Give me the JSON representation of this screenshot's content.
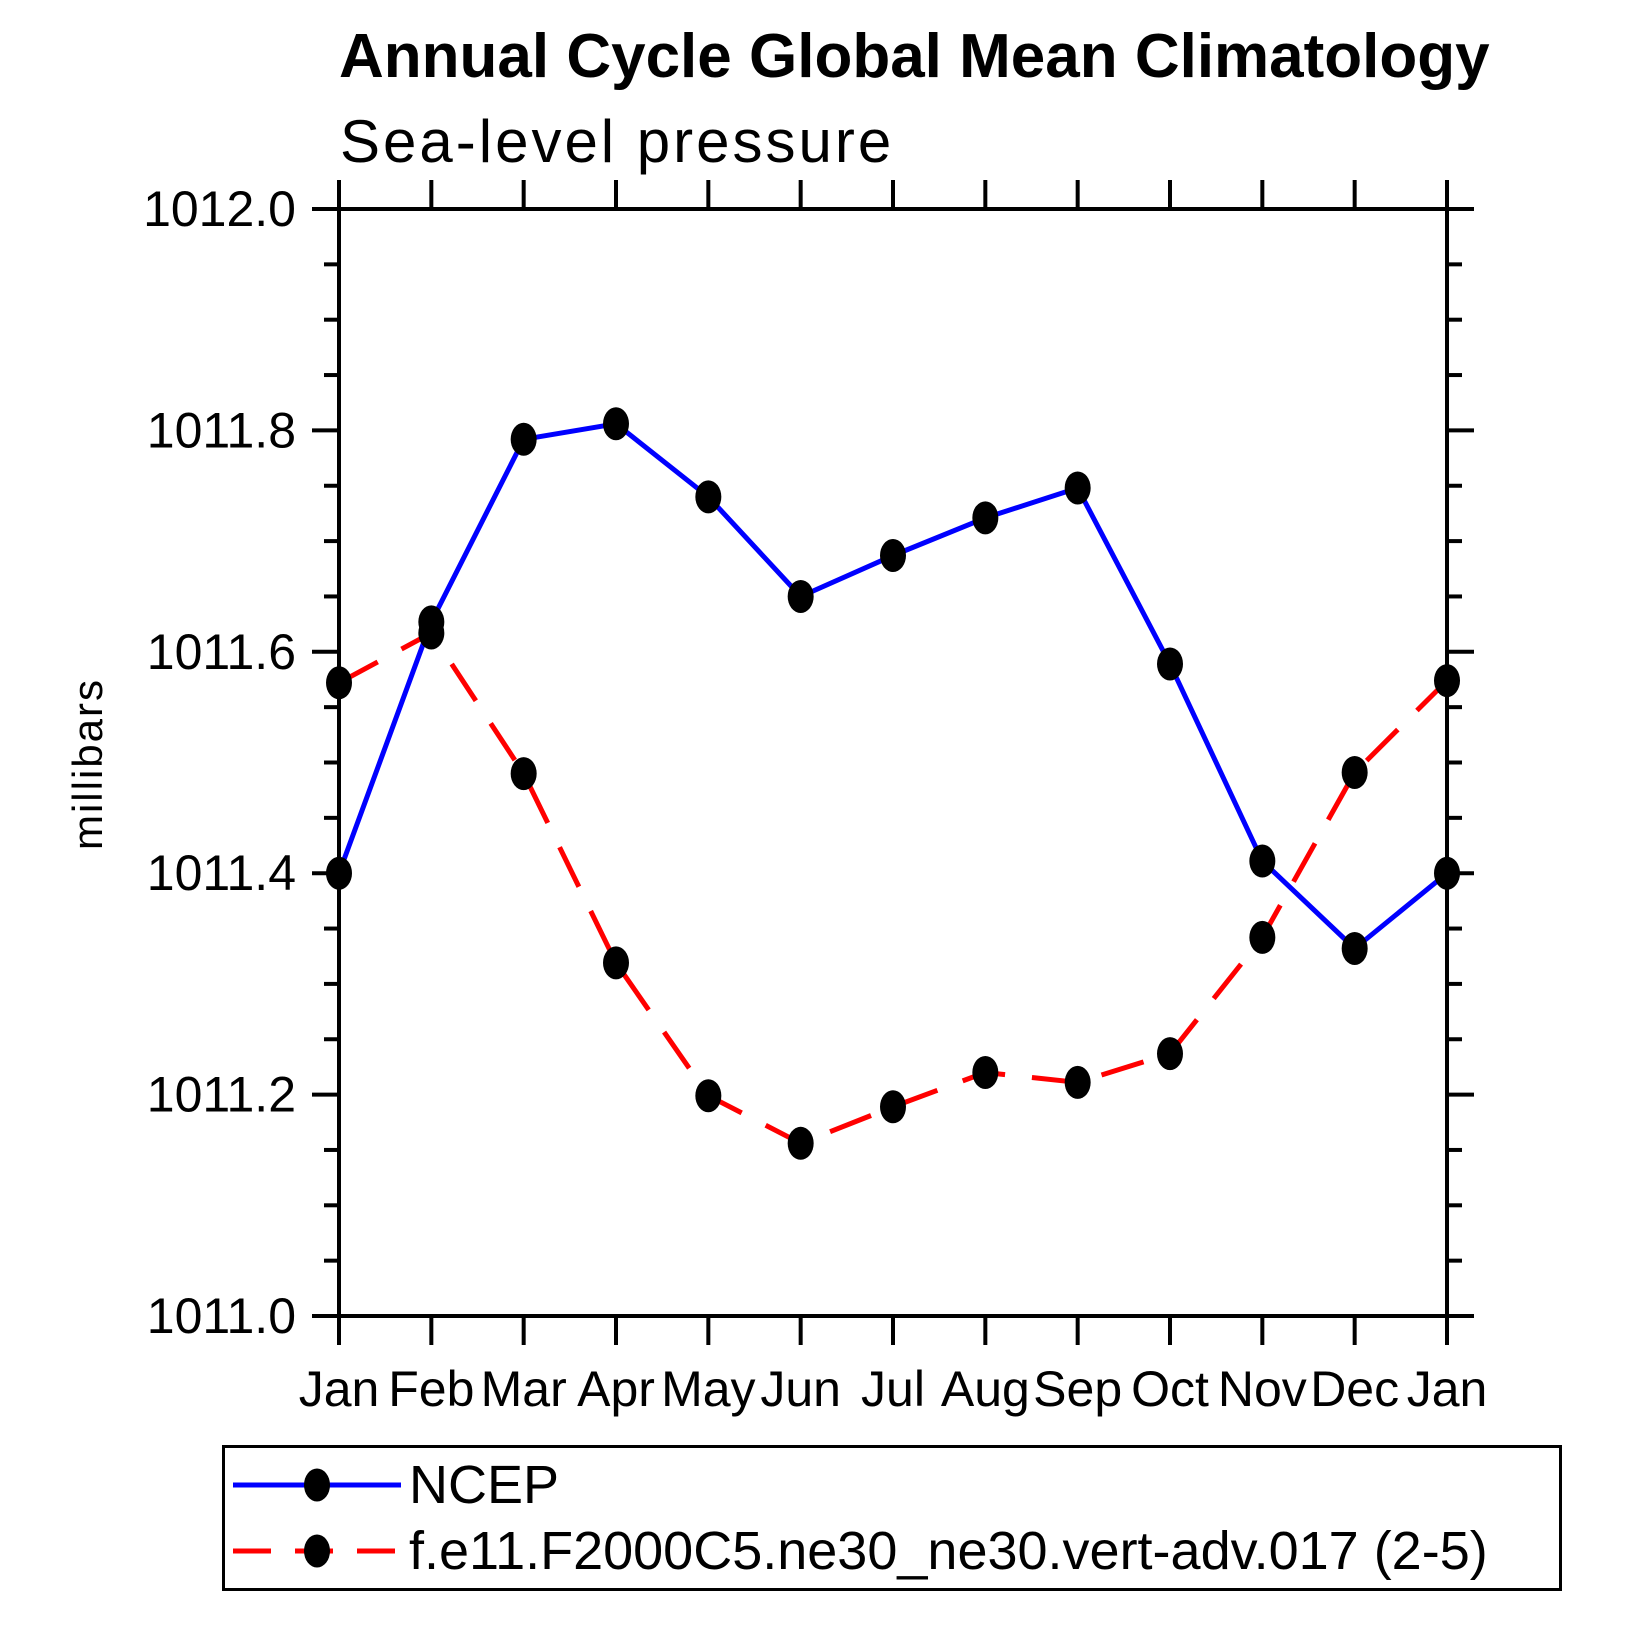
{
  "header": {
    "title": "Annual Cycle Global Mean Climatology",
    "subtitle": "Sea-level pressure"
  },
  "y_axis_title": "millibars",
  "colors": {
    "ncep_line": "#0000ff",
    "model_line": "#ff0000",
    "marker": "#000000",
    "axis": "#000000",
    "background": "#ffffff"
  },
  "legend": {
    "entries": [
      {
        "label": "NCEP",
        "color": "#0000ff",
        "line_style": "solid"
      },
      {
        "label": "f.e11.F2000C5.ne30_ne30.vert-adv.017 (2-5)",
        "color": "#ff0000",
        "line_style": "dashed"
      }
    ]
  },
  "chart_data": {
    "type": "line",
    "title": "Annual Cycle Global Mean Climatology",
    "subtitle": "Sea-level pressure",
    "ylabel": "millibars",
    "xlabel": "",
    "categories": [
      "Jan",
      "Feb",
      "Mar",
      "Apr",
      "May",
      "Jun",
      "Jul",
      "Aug",
      "Sep",
      "Oct",
      "Nov",
      "Dec",
      "Jan"
    ],
    "ylim": [
      1011.0,
      1012.0
    ],
    "y_major_step": 0.2,
    "y_minor_step": 0.05,
    "y_tick_labels": [
      "1012.0",
      "1011.8",
      "1011.6",
      "1011.4",
      "1011.2",
      "1011.0"
    ],
    "grid": false,
    "legend_position": "below-left",
    "marker": "filled-circle",
    "series": [
      {
        "name": "NCEP",
        "color": "#0000ff",
        "line_style": "solid",
        "values": [
          1011.4,
          1011.627,
          1011.792,
          1011.806,
          1011.74,
          1011.65,
          1011.687,
          1011.721,
          1011.748,
          1011.589,
          1011.411,
          1011.332,
          1011.4
        ]
      },
      {
        "name": "f.e11.F2000C5.ne30_ne30.vert-adv.017 (2-5)",
        "color": "#ff0000",
        "line_style": "dashed",
        "values": [
          1011.572,
          1011.617,
          1011.49,
          1011.319,
          1011.199,
          1011.156,
          1011.189,
          1011.22,
          1011.211,
          1011.237,
          1011.342,
          1011.491,
          1011.574
        ]
      }
    ]
  }
}
